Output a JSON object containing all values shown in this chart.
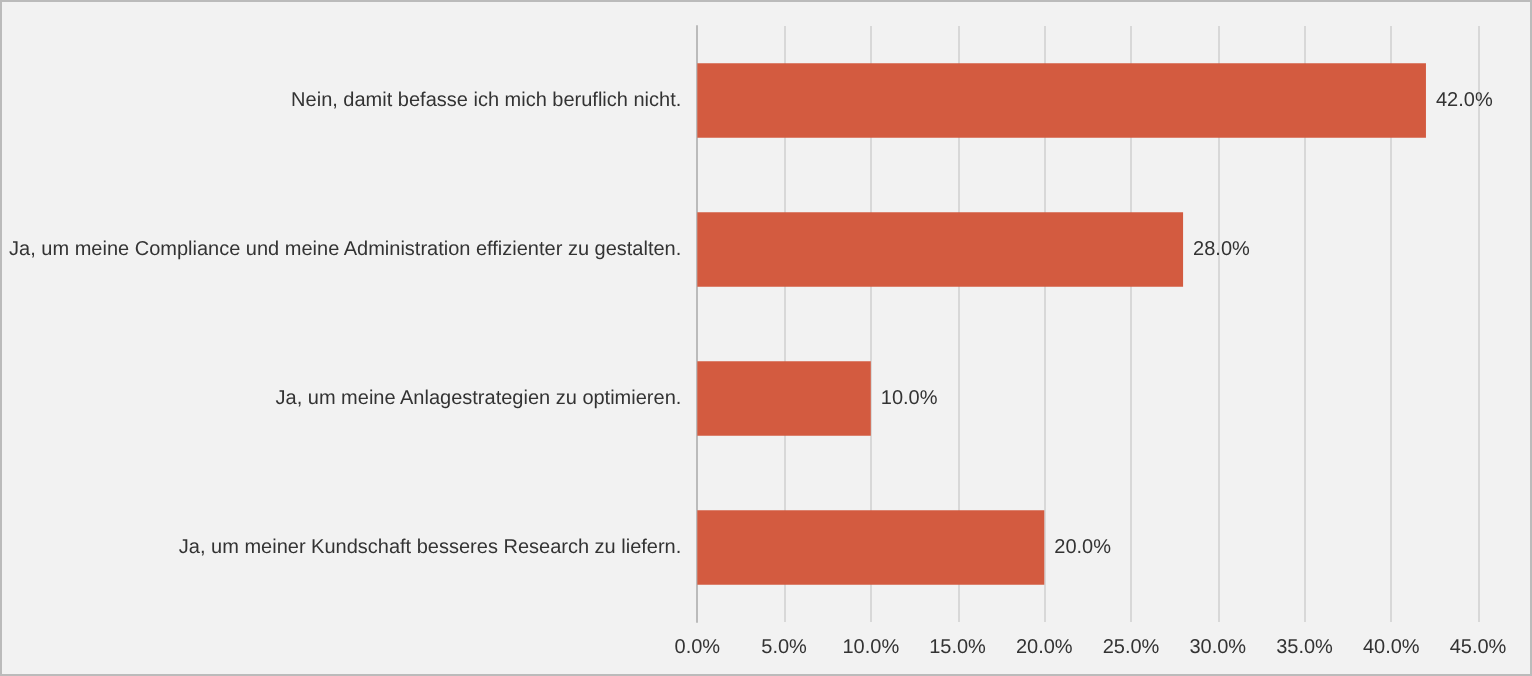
{
  "chart_data": {
    "type": "bar",
    "orientation": "horizontal",
    "categories": [
      "Nein, damit befasse ich mich beruflich nicht.",
      "Ja, um meine Compliance und meine Administration effizienter zu gestalten.",
      "Ja, um meine Anlagestrategien zu optimieren.",
      "Ja, um meiner Kundschaft besseres Research zu liefern."
    ],
    "values": [
      42,
      28,
      10,
      20
    ],
    "value_labels": [
      "42.0%",
      "28.0%",
      "10.0%",
      "20.0%"
    ],
    "color": "#d35b40",
    "xlim": [
      0,
      45
    ],
    "xticks": [
      {
        "value": 0,
        "label": "0.0%"
      },
      {
        "value": 5,
        "label": "5.0%"
      },
      {
        "value": 10,
        "label": "10.0%"
      },
      {
        "value": 15,
        "label": "15.0%"
      },
      {
        "value": 20,
        "label": "20.0%"
      },
      {
        "value": 25,
        "label": "25.0%"
      },
      {
        "value": 30,
        "label": "30.0%"
      },
      {
        "value": 35,
        "label": "35.0%"
      },
      {
        "value": 40,
        "label": "40.0%"
      },
      {
        "value": 45,
        "label": "45.0%"
      }
    ],
    "grid": "x"
  }
}
